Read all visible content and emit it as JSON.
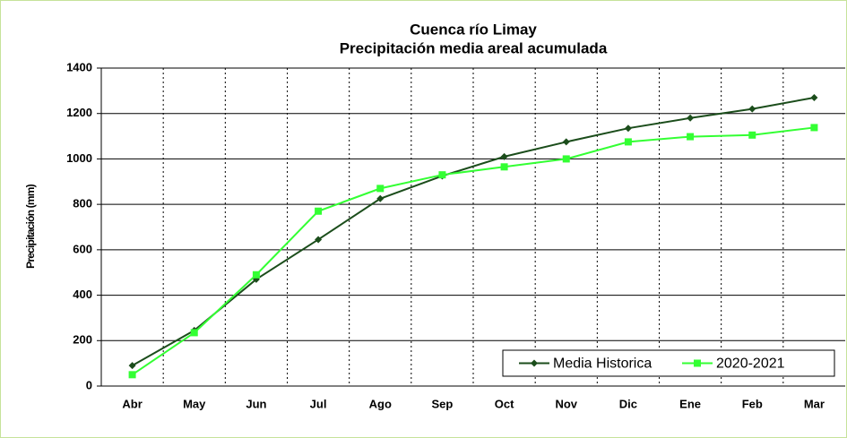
{
  "chart_data": {
    "type": "line",
    "title": [
      "Cuenca río Limay",
      "Precipitación media areal acumulada"
    ],
    "y_label": "Precipitación (mm)",
    "categories": [
      "Abr",
      "May",
      "Jun",
      "Jul",
      "Ago",
      "Sep",
      "Oct",
      "Nov",
      "Dic",
      "Ene",
      "Feb",
      "Mar"
    ],
    "series": [
      {
        "name": "Media Historica",
        "color": "#1b4d1b",
        "marker": "diamond",
        "values": [
          90,
          245,
          470,
          645,
          825,
          925,
          1010,
          1075,
          1135,
          1180,
          1220,
          1270
        ]
      },
      {
        "name": "2020-2021",
        "color": "#33ff33",
        "marker": "square",
        "values": [
          50,
          235,
          490,
          770,
          870,
          930,
          965,
          1000,
          1075,
          1098,
          1105,
          1138
        ]
      }
    ],
    "ylim": [
      0,
      1400
    ],
    "yticks": [
      0,
      200,
      400,
      600,
      800,
      1000,
      1200,
      1400
    ],
    "grid": true,
    "legend": "lower right"
  }
}
